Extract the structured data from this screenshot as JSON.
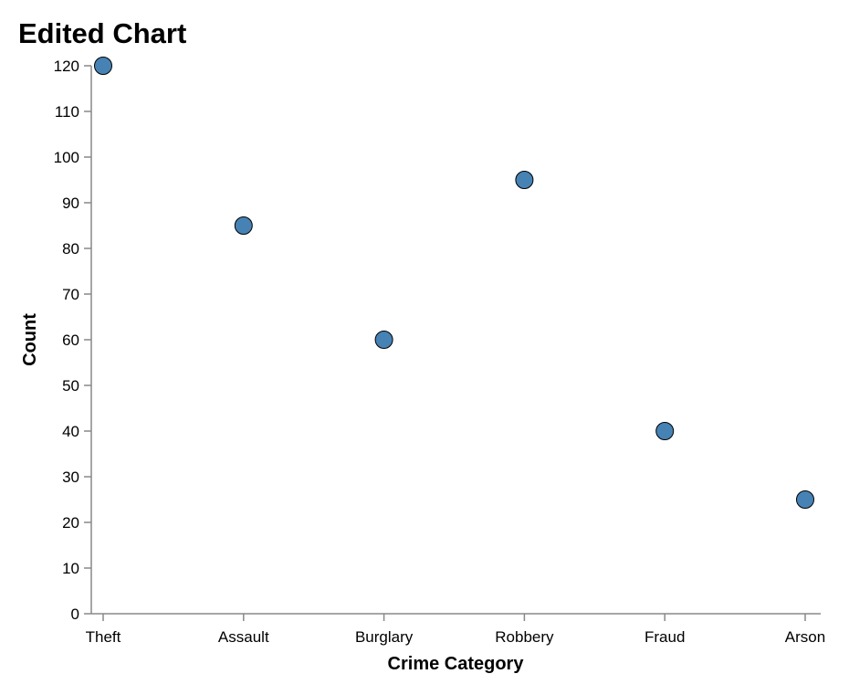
{
  "chart_data": {
    "type": "scatter",
    "title": "Edited Chart",
    "xlabel": "Crime Category",
    "ylabel": "Count",
    "categories": [
      "Theft",
      "Assault",
      "Burglary",
      "Robbery",
      "Fraud",
      "Arson"
    ],
    "values": [
      120,
      85,
      60,
      95,
      40,
      25
    ],
    "ylim": [
      0,
      120
    ],
    "yticks": [
      0,
      10,
      20,
      30,
      40,
      50,
      60,
      70,
      80,
      90,
      100,
      110,
      120
    ],
    "grid": false,
    "point_color": "#4682b4",
    "point_stroke": "#000000"
  }
}
